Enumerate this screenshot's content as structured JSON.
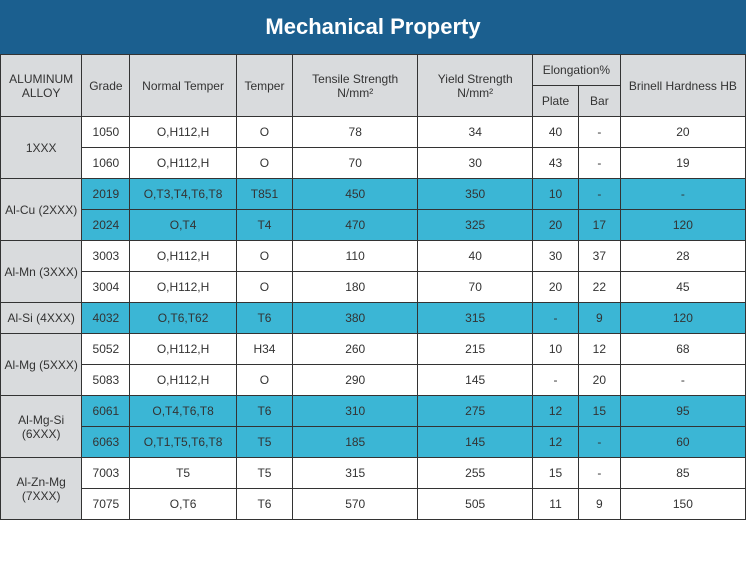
{
  "title": "Mechanical Property",
  "headers": {
    "alloy": "ALUMINUM ALLOY",
    "grade": "Grade",
    "normal_temper": "Normal Temper",
    "temper": "Temper",
    "tensile": "Tensile Strength N/mm²",
    "yield": "Yield Strength N/mm²",
    "elongation": "Elongation%",
    "plate": "Plate",
    "bar": "Bar",
    "hb": "Brinell Hardness HB"
  },
  "groups": [
    {
      "alloy": "1XXX",
      "color": "white",
      "rows": [
        {
          "grade": "1050",
          "ntemper": "O,H112,H",
          "temper": "O",
          "tensile": "78",
          "yield": "34",
          "plate": "40",
          "bar": "-",
          "hb": "20"
        },
        {
          "grade": "1060",
          "ntemper": "O,H112,H",
          "temper": "O",
          "tensile": "70",
          "yield": "30",
          "plate": "43",
          "bar": "-",
          "hb": "19"
        }
      ]
    },
    {
      "alloy": "Al-Cu (2XXX)",
      "color": "cyan",
      "rows": [
        {
          "grade": "2019",
          "ntemper": "O,T3,T4,T6,T8",
          "temper": "T851",
          "tensile": "450",
          "yield": "350",
          "plate": "10",
          "bar": "-",
          "hb": "-"
        },
        {
          "grade": "2024",
          "ntemper": "O,T4",
          "temper": "T4",
          "tensile": "470",
          "yield": "325",
          "plate": "20",
          "bar": "17",
          "hb": "120"
        }
      ]
    },
    {
      "alloy": "Al-Mn (3XXX)",
      "color": "white",
      "rows": [
        {
          "grade": "3003",
          "ntemper": "O,H112,H",
          "temper": "O",
          "tensile": "110",
          "yield": "40",
          "plate": "30",
          "bar": "37",
          "hb": "28"
        },
        {
          "grade": "3004",
          "ntemper": "O,H112,H",
          "temper": "O",
          "tensile": "180",
          "yield": "70",
          "plate": "20",
          "bar": "22",
          "hb": "45"
        }
      ]
    },
    {
      "alloy": "Al-Si (4XXX)",
      "color": "cyan",
      "rows": [
        {
          "grade": "4032",
          "ntemper": "O,T6,T62",
          "temper": "T6",
          "tensile": "380",
          "yield": "315",
          "plate": "-",
          "bar": "9",
          "hb": "120"
        }
      ]
    },
    {
      "alloy": "Al-Mg (5XXX)",
      "color": "white",
      "rows": [
        {
          "grade": "5052",
          "ntemper": "O,H112,H",
          "temper": "H34",
          "tensile": "260",
          "yield": "215",
          "plate": "10",
          "bar": "12",
          "hb": "68"
        },
        {
          "grade": "5083",
          "ntemper": "O,H112,H",
          "temper": "O",
          "tensile": "290",
          "yield": "145",
          "plate": "-",
          "bar": "20",
          "hb": "-"
        }
      ]
    },
    {
      "alloy": "Al-Mg-Si (6XXX)",
      "color": "cyan",
      "rows": [
        {
          "grade": "6061",
          "ntemper": "O,T4,T6,T8",
          "temper": "T6",
          "tensile": "310",
          "yield": "275",
          "plate": "12",
          "bar": "15",
          "hb": "95"
        },
        {
          "grade": "6063",
          "ntemper": "O,T1,T5,T6,T8",
          "temper": "T5",
          "tensile": "185",
          "yield": "145",
          "plate": "12",
          "bar": "-",
          "hb": "60"
        }
      ]
    },
    {
      "alloy": "Al-Zn-Mg (7XXX)",
      "color": "white",
      "rows": [
        {
          "grade": "7003",
          "ntemper": "T5",
          "temper": "T5",
          "tensile": "315",
          "yield": "255",
          "plate": "15",
          "bar": "-",
          "hb": "85"
        },
        {
          "grade": "7075",
          "ntemper": "O,T6",
          "temper": "T6",
          "tensile": "570",
          "yield": "505",
          "plate": "11",
          "bar": "9",
          "hb": "150"
        }
      ]
    }
  ]
}
